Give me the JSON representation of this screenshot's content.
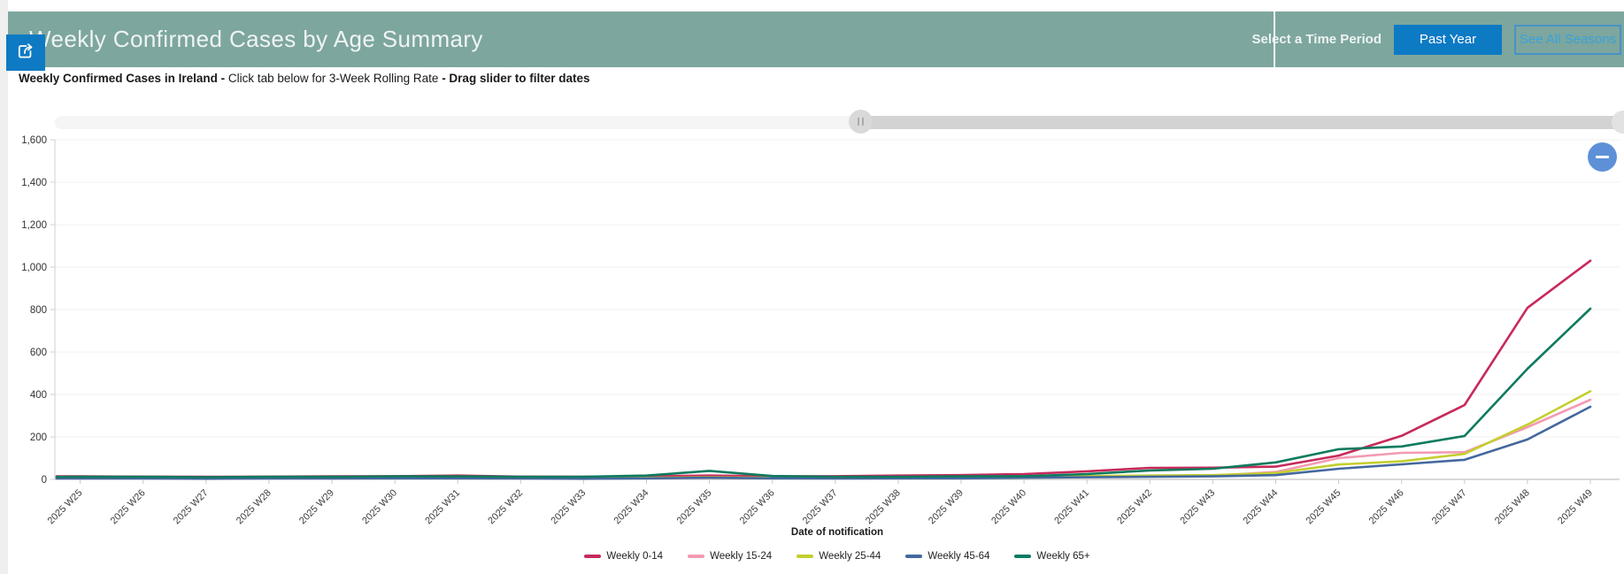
{
  "header": {
    "title": "Weekly Confirmed Cases by Age Summary",
    "select_time_period_label": "Select a Time Period",
    "past_year_button": "Past Year",
    "see_all_seasons_button": "See All Seasons"
  },
  "subtitle": {
    "bold_lead": "Weekly Confirmed Cases in Ireland - ",
    "normal_mid": " Click tab below for 3-Week Rolling Rate ",
    "bold_tail": "- Drag slider to filter dates"
  },
  "icons": {
    "share_button": "share-export-icon",
    "collapse_button": "minus-icon",
    "slider_handle": "grip-icon"
  },
  "colors": {
    "banner_background": "#7da69e",
    "primary_blue": "#0d7ac4",
    "link_blue": "#39a2da",
    "collapse_blue": "#5e90d8",
    "slider_track_light": "#f5f5f5",
    "slider_track_dark": "#d3d3d3"
  },
  "chart_data": {
    "type": "line",
    "title": "Weekly Confirmed Cases in Ireland",
    "xlabel": "Date of notification",
    "ylabel": "",
    "ylim": [
      0,
      1600
    ],
    "ytick_step": 200,
    "ytick_labels": [
      "0",
      "200",
      "400",
      "600",
      "800",
      "1,000",
      "1,200",
      "1,400",
      "1,600"
    ],
    "grid": "horizontal",
    "legend_position": "bottom",
    "categories": [
      "2025 W25",
      "2025 W26",
      "2025 W27",
      "2025 W28",
      "2025 W29",
      "2025 W30",
      "2025 W31",
      "2025 W32",
      "2025 W33",
      "2025 W34",
      "2025 W35",
      "2025 W36",
      "2025 W37",
      "2025 W38",
      "2025 W39",
      "2025 W40",
      "2025 W41",
      "2025 W42",
      "2025 W43",
      "2025 W44",
      "2025 W45",
      "2025 W46",
      "2025 W47",
      "2025 W48",
      "2025 W49"
    ],
    "series": [
      {
        "name": "Weekly 0-14",
        "color": "#c72a5a",
        "values": [
          14,
          13,
          12,
          13,
          14,
          15,
          18,
          13,
          12,
          14,
          18,
          14,
          15,
          18,
          20,
          25,
          38,
          54,
          55,
          60,
          112,
          205,
          350,
          808,
          1030
        ]
      },
      {
        "name": "Weekly 15-24",
        "color": "#f49ab2",
        "values": [
          5,
          5,
          4,
          5,
          5,
          6,
          6,
          5,
          4,
          6,
          8,
          6,
          5,
          6,
          6,
          10,
          14,
          15,
          17,
          35,
          100,
          125,
          128,
          246,
          375
        ]
      },
      {
        "name": "Weekly 25-44",
        "color": "#c3cf2f",
        "values": [
          6,
          6,
          5,
          6,
          6,
          7,
          8,
          6,
          5,
          7,
          10,
          7,
          6,
          7,
          7,
          12,
          16,
          18,
          20,
          30,
          70,
          85,
          120,
          258,
          415
        ]
      },
      {
        "name": "Weekly 45-64",
        "color": "#44689e",
        "values": [
          4,
          4,
          3,
          4,
          4,
          5,
          5,
          4,
          3,
          5,
          8,
          5,
          4,
          5,
          5,
          8,
          10,
          12,
          14,
          20,
          50,
          71,
          92,
          188,
          342
        ]
      },
      {
        "name": "Weekly 65+",
        "color": "#0f7a5f",
        "values": [
          12,
          12,
          10,
          12,
          12,
          14,
          14,
          12,
          12,
          18,
          40,
          16,
          12,
          12,
          14,
          15,
          25,
          42,
          50,
          80,
          142,
          155,
          204,
          521,
          804
        ]
      }
    ]
  }
}
